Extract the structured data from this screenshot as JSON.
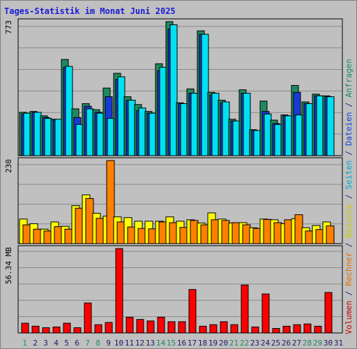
{
  "title": "Tages-Statistik im Monat Juni 2025",
  "chart_data": [
    {
      "type": "bar",
      "panel": "top",
      "categories": [
        "1",
        "2",
        "3",
        "4",
        "5",
        "6",
        "7",
        "8",
        "9",
        "10",
        "11",
        "12",
        "13",
        "14",
        "15",
        "16",
        "17",
        "18",
        "19",
        "20",
        "21",
        "22",
        "23",
        "24",
        "25",
        "26",
        "27",
        "28",
        "29",
        "30",
        "31"
      ],
      "weekend_days": [
        "1",
        "7",
        "8",
        "14",
        "15",
        "21",
        "22",
        "28",
        "29"
      ],
      "ylim": [
        0,
        773
      ],
      "y_tick_label": "773",
      "series": [
        {
          "name": "Anfragen",
          "color": "#1e8a5e",
          "values": [
            250,
            255,
            230,
            210,
            555,
            270,
            300,
            265,
            390,
            475,
            340,
            295,
            255,
            530,
            773,
            305,
            385,
            720,
            365,
            320,
            210,
            380,
            150,
            315,
            205,
            235,
            405,
            310,
            355,
            345,
            0
          ]
        },
        {
          "name": "Dateien",
          "color": "#1a3ad6",
          "values": [
            240,
            250,
            220,
            205,
            510,
            220,
            285,
            250,
            340,
            440,
            320,
            260,
            245,
            490,
            730,
            300,
            360,
            700,
            350,
            305,
            200,
            360,
            145,
            255,
            185,
            230,
            365,
            300,
            345,
            340,
            0
          ]
        },
        {
          "name": "Seiten",
          "color": "#00e0f0",
          "values": [
            245,
            250,
            215,
            210,
            515,
            180,
            270,
            245,
            215,
            455,
            320,
            275,
            245,
            510,
            755,
            300,
            360,
            700,
            360,
            310,
            200,
            360,
            145,
            240,
            180,
            230,
            235,
            300,
            345,
            340,
            0
          ]
        }
      ]
    },
    {
      "type": "bar",
      "panel": "middle",
      "categories": [
        "1",
        "2",
        "3",
        "4",
        "5",
        "6",
        "7",
        "8",
        "9",
        "10",
        "11",
        "12",
        "13",
        "14",
        "15",
        "16",
        "17",
        "18",
        "19",
        "20",
        "21",
        "22",
        "23",
        "24",
        "25",
        "26",
        "27",
        "28",
        "29",
        "30",
        "31"
      ],
      "ylim": [
        0,
        230
      ],
      "y_tick_label": "230",
      "series": [
        {
          "name": "Besuche",
          "color": "#ffff00",
          "values": [
            68,
            55,
            40,
            60,
            48,
            105,
            135,
            84,
            76,
            74,
            72,
            62,
            62,
            62,
            74,
            62,
            66,
            57,
            85,
            68,
            57,
            58,
            44,
            68,
            66,
            55,
            69,
            44,
            50,
            60,
            0
          ]
        },
        {
          "name": "Rechner",
          "color": "#ff8000",
          "values": [
            52,
            40,
            35,
            47,
            40,
            98,
            125,
            70,
            230,
            60,
            46,
            42,
            41,
            60,
            58,
            45,
            64,
            52,
            66,
            64,
            58,
            52,
            42,
            67,
            58,
            66,
            80,
            35,
            39,
            49,
            0
          ]
        }
      ]
    },
    {
      "type": "bar",
      "panel": "bottom",
      "categories": [
        "1",
        "2",
        "3",
        "4",
        "5",
        "6",
        "7",
        "8",
        "9",
        "10",
        "11",
        "12",
        "13",
        "14",
        "15",
        "16",
        "17",
        "18",
        "19",
        "20",
        "21",
        "22",
        "23",
        "24",
        "25",
        "26",
        "27",
        "28",
        "29",
        "30",
        "31"
      ],
      "ylim": [
        0,
        56.34
      ],
      "y_tick_label": "56.34 MB",
      "series": [
        {
          "name": "Volumen",
          "color": "#ff0000",
          "values": [
            6.5,
            4.5,
            3.5,
            4.0,
            6.5,
            3.5,
            20.0,
            5.5,
            7.0,
            56.3,
            10.5,
            9.0,
            8.0,
            10.5,
            7.5,
            7.5,
            29.0,
            4.5,
            5.5,
            7.5,
            5.5,
            32.0,
            4.0,
            26.0,
            3.0,
            4.5,
            5.5,
            6.0,
            4.5,
            27.0,
            0
          ]
        }
      ]
    }
  ],
  "right_legend": [
    {
      "text": "Volumen",
      "color": "#cc0000"
    },
    {
      "text": " / ",
      "color": "#1a1a6a"
    },
    {
      "text": "Rechner",
      "color": "#e07000"
    },
    {
      "text": " / ",
      "color": "#1a1a6a"
    },
    {
      "text": "Besuche",
      "color": "#cccc00"
    },
    {
      "text": " / ",
      "color": "#1a1a6a"
    },
    {
      "text": "Seiten",
      "color": "#00aacc"
    },
    {
      "text": " / ",
      "color": "#1a1a6a"
    },
    {
      "text": "Dateien",
      "color": "#1a3ad6"
    },
    {
      "text": " / ",
      "color": "#1a1a6a"
    },
    {
      "text": "Anfragen",
      "color": "#1e8a5e"
    }
  ],
  "colors": {
    "title": "#1a1ad6",
    "tick_weekday": "#1a1a6a",
    "tick_weekend": "#1e8a5e",
    "plot_bg": "#c0c0c0",
    "grid": "#8a8a8a",
    "axis": "#000000"
  }
}
